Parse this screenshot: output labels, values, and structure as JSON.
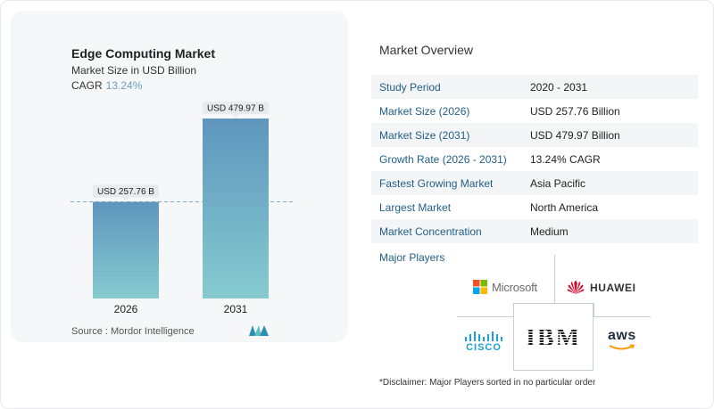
{
  "chart": {
    "title": "Edge Computing Market",
    "subtitle": "Market Size in USD Billion",
    "cagr_label": "CAGR",
    "cagr_value": "13.24%",
    "source": "Source :  Mordor Intelligence"
  },
  "chart_data": {
    "type": "bar",
    "categories": [
      "2026",
      "2031"
    ],
    "values": [
      257.76,
      479.97
    ],
    "data_labels": [
      "USD 257.76 B",
      "USD 479.97 B"
    ],
    "title": "Edge Computing Market",
    "subtitle": "Market Size in USD Billion",
    "xlabel": "",
    "ylabel": "",
    "ylim": [
      0,
      479.97
    ],
    "grid": false,
    "reference_line": "dashed line at 2026 value",
    "colors": {
      "bar_top": "#5f95bd",
      "bar_bottom": "#86cbd0",
      "label_bg": "#e8eaed"
    }
  },
  "overview": {
    "title": "Market Overview",
    "rows": [
      {
        "label": "Study Period",
        "value": "2020 - 2031"
      },
      {
        "label": "Market Size (2026)",
        "value": "USD 257.76 Billion"
      },
      {
        "label": "Market Size (2031)",
        "value": "USD 479.97 Billion"
      },
      {
        "label": "Growth Rate (2026 - 2031)",
        "value": "13.24% CAGR"
      },
      {
        "label": "Fastest Growing Market",
        "value": "Asia Pacific"
      },
      {
        "label": "Largest Market",
        "value": "North America"
      },
      {
        "label": "Market Concentration",
        "value": "Medium"
      }
    ],
    "players_title": "Major Players",
    "players": {
      "microsoft": "Microsoft",
      "huawei": "HUAWEI",
      "cisco": "CISCO",
      "ibm": "IBM",
      "aws": "aws"
    },
    "disclaimer": "*Disclaimer: Major Players sorted in no particular order"
  },
  "colors": {
    "accent_text": "#1f5f86",
    "cagr": "#6a9fc1",
    "row_shade": "#f4f5f7"
  },
  "icons": [
    "microsoft-logo",
    "huawei-logo",
    "cisco-logo",
    "ibm-logo",
    "aws-logo",
    "mordor-intelligence-logo"
  ]
}
